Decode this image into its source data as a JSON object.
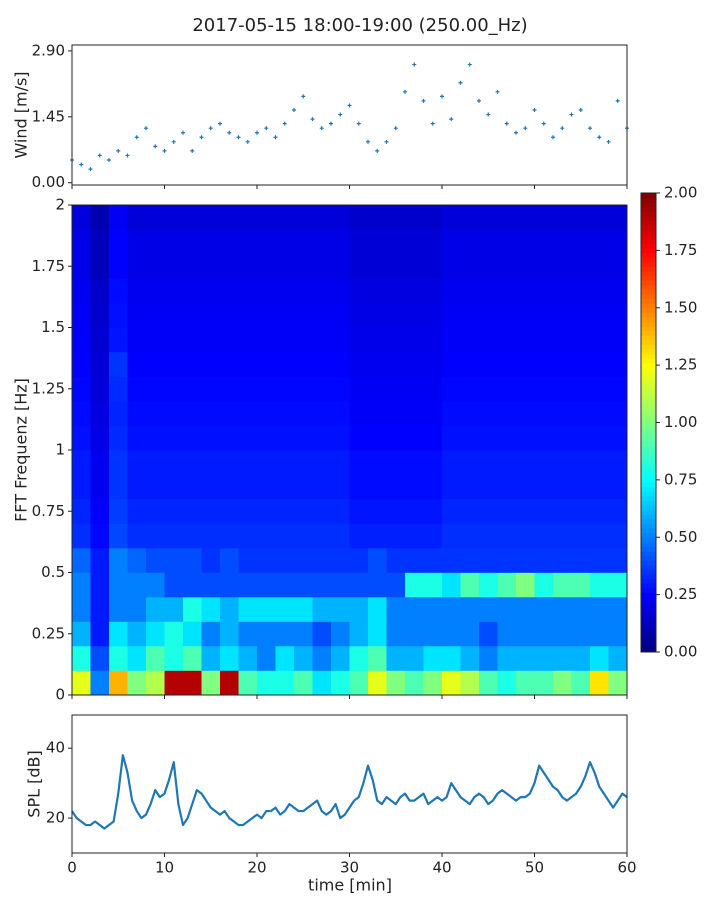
{
  "chart_data": [
    {
      "type": "scatter",
      "title": "2017-05-15 18:00-19:00 (250.00_Hz)",
      "ylabel": "Wind [m/s]",
      "color": "#1f77b4",
      "xlim": [
        0,
        60
      ],
      "ylim": [
        -0.05,
        3.03
      ],
      "yticks": [
        {
          "value": 0,
          "label": "0.00"
        },
        {
          "value": 1.45,
          "label": "1.45"
        },
        {
          "value": 2.9,
          "label": "2.90"
        }
      ],
      "x": [
        0,
        1,
        2,
        3,
        4,
        5,
        6,
        7,
        8,
        9,
        10,
        11,
        12,
        13,
        14,
        15,
        16,
        17,
        18,
        19,
        20,
        21,
        22,
        23,
        24,
        25,
        26,
        27,
        28,
        29,
        30,
        31,
        32,
        33,
        34,
        35,
        36,
        37,
        38,
        39,
        40,
        41,
        42,
        43,
        44,
        45,
        46,
        47,
        48,
        49,
        50,
        51,
        52,
        53,
        54,
        55,
        56,
        57,
        58,
        59,
        60
      ],
      "values": [
        0.5,
        0.4,
        0.3,
        0.6,
        0.5,
        0.7,
        0.6,
        1.0,
        1.2,
        0.8,
        0.7,
        0.9,
        1.1,
        0.7,
        1.0,
        1.2,
        1.3,
        1.1,
        1.0,
        0.9,
        1.1,
        1.2,
        1.0,
        1.3,
        1.6,
        1.9,
        1.4,
        1.2,
        1.3,
        1.5,
        1.7,
        1.3,
        0.9,
        0.7,
        0.9,
        1.2,
        2.0,
        2.6,
        1.8,
        1.3,
        1.9,
        1.4,
        2.2,
        2.6,
        1.8,
        1.5,
        2.0,
        1.3,
        1.1,
        1.2,
        1.6,
        1.3,
        1.0,
        1.2,
        1.5,
        1.6,
        1.2,
        1.0,
        0.9,
        1.8,
        1.2
      ]
    },
    {
      "type": "heatmap",
      "ylabel": "FFT Frequenz [Hz]",
      "colormap": "jet",
      "xlim": [
        0,
        60
      ],
      "ylim": [
        0,
        2
      ],
      "yticks": [
        0,
        0.25,
        0.5,
        0.75,
        1,
        1.25,
        1.5,
        1.75,
        2
      ],
      "zlim": [
        0,
        2
      ],
      "zticks": [
        {
          "value": 0,
          "label": "0.00"
        },
        {
          "value": 0.25,
          "label": "0.25"
        },
        {
          "value": 0.5,
          "label": "0.50"
        },
        {
          "value": 0.75,
          "label": "0.75"
        },
        {
          "value": 1,
          "label": "1.00"
        },
        {
          "value": 1.25,
          "label": "1.25"
        },
        {
          "value": 1.5,
          "label": "1.50"
        },
        {
          "value": 1.75,
          "label": "1.75"
        },
        {
          "value": 2,
          "label": "2.00"
        }
      ],
      "x": [
        1,
        3,
        5,
        7,
        9,
        11,
        13,
        15,
        17,
        19,
        21,
        23,
        25,
        27,
        29,
        31,
        33,
        35,
        37,
        39,
        41,
        43,
        45,
        47,
        49,
        51,
        53,
        55,
        57,
        59
      ],
      "y": [
        0.05,
        0.15,
        0.25,
        0.35,
        0.45,
        0.55,
        0.65,
        0.75,
        0.85,
        0.95,
        1.05,
        1.15,
        1.25,
        1.35,
        1.45,
        1.55,
        1.65,
        1.75,
        1.85,
        1.95
      ],
      "z": [
        [
          1.2,
          0.5,
          1.4,
          1.0,
          1.1,
          1.9,
          1.9,
          1.0,
          1.9,
          0.9,
          0.8,
          0.8,
          0.9,
          0.7,
          0.8,
          0.9,
          1.2,
          1.0,
          0.9,
          1.0,
          1.2,
          1.1,
          0.9,
          0.8,
          0.9,
          0.9,
          1.0,
          0.9,
          1.3,
          1.0
        ],
        [
          0.8,
          0.4,
          0.8,
          0.7,
          0.9,
          0.8,
          0.9,
          0.6,
          0.7,
          0.6,
          0.5,
          0.7,
          0.6,
          0.5,
          0.6,
          0.8,
          0.9,
          0.6,
          0.6,
          0.7,
          0.7,
          0.6,
          0.5,
          0.6,
          0.6,
          0.6,
          0.6,
          0.6,
          0.7,
          0.6
        ],
        [
          0.6,
          0.3,
          0.7,
          0.6,
          0.7,
          0.8,
          0.7,
          0.5,
          0.6,
          0.5,
          0.5,
          0.5,
          0.5,
          0.4,
          0.5,
          0.6,
          0.7,
          0.5,
          0.5,
          0.5,
          0.5,
          0.5,
          0.4,
          0.5,
          0.5,
          0.5,
          0.5,
          0.5,
          0.5,
          0.5
        ],
        [
          0.5,
          0.3,
          0.5,
          0.5,
          0.6,
          0.6,
          0.8,
          0.7,
          0.6,
          0.7,
          0.7,
          0.7,
          0.7,
          0.6,
          0.6,
          0.6,
          0.7,
          0.5,
          0.5,
          0.5,
          0.5,
          0.5,
          0.5,
          0.5,
          0.5,
          0.5,
          0.5,
          0.5,
          0.5,
          0.5
        ],
        [
          0.5,
          0.3,
          0.5,
          0.5,
          0.5,
          0.4,
          0.4,
          0.4,
          0.4,
          0.4,
          0.4,
          0.4,
          0.4,
          0.4,
          0.4,
          0.4,
          0.4,
          0.4,
          0.8,
          0.8,
          0.7,
          0.9,
          0.8,
          0.9,
          1.0,
          0.8,
          0.9,
          0.9,
          0.8,
          0.8
        ],
        [
          0.45,
          0.3,
          0.5,
          0.45,
          0.4,
          0.4,
          0.4,
          0.35,
          0.4,
          0.35,
          0.35,
          0.35,
          0.35,
          0.35,
          0.35,
          0.35,
          0.4,
          0.35,
          0.35,
          0.35,
          0.35,
          0.35,
          0.35,
          0.35,
          0.35,
          0.35,
          0.35,
          0.35,
          0.35,
          0.35
        ],
        [
          0.34,
          0.26,
          0.39,
          0.34,
          0.34,
          0.34,
          0.34,
          0.34,
          0.34,
          0.34,
          0.34,
          0.34,
          0.34,
          0.34,
          0.34,
          0.31,
          0.31,
          0.31,
          0.31,
          0.31,
          0.34,
          0.34,
          0.34,
          0.34,
          0.34,
          0.34,
          0.34,
          0.34,
          0.34,
          0.34
        ],
        [
          0.32,
          0.24,
          0.37,
          0.32,
          0.32,
          0.32,
          0.32,
          0.32,
          0.32,
          0.32,
          0.32,
          0.32,
          0.32,
          0.32,
          0.32,
          0.29,
          0.29,
          0.29,
          0.29,
          0.29,
          0.32,
          0.32,
          0.32,
          0.32,
          0.32,
          0.32,
          0.32,
          0.32,
          0.32,
          0.32
        ],
        [
          0.3,
          0.22,
          0.35,
          0.3,
          0.3,
          0.3,
          0.3,
          0.3,
          0.3,
          0.3,
          0.3,
          0.3,
          0.3,
          0.3,
          0.3,
          0.27,
          0.27,
          0.27,
          0.27,
          0.27,
          0.3,
          0.3,
          0.3,
          0.3,
          0.3,
          0.3,
          0.3,
          0.3,
          0.3,
          0.3
        ],
        [
          0.3,
          0.22,
          0.35,
          0.3,
          0.3,
          0.3,
          0.3,
          0.3,
          0.3,
          0.3,
          0.3,
          0.3,
          0.3,
          0.3,
          0.3,
          0.27,
          0.27,
          0.27,
          0.27,
          0.27,
          0.3,
          0.3,
          0.3,
          0.3,
          0.3,
          0.3,
          0.3,
          0.3,
          0.3,
          0.3
        ],
        [
          0.28,
          0.2,
          0.33,
          0.28,
          0.28,
          0.28,
          0.28,
          0.28,
          0.28,
          0.28,
          0.28,
          0.28,
          0.28,
          0.28,
          0.28,
          0.25,
          0.25,
          0.25,
          0.25,
          0.25,
          0.28,
          0.28,
          0.28,
          0.28,
          0.28,
          0.28,
          0.28,
          0.28,
          0.28,
          0.28
        ],
        [
          0.27,
          0.19,
          0.32,
          0.27,
          0.27,
          0.27,
          0.27,
          0.27,
          0.27,
          0.27,
          0.27,
          0.27,
          0.27,
          0.27,
          0.27,
          0.24,
          0.24,
          0.24,
          0.24,
          0.24,
          0.27,
          0.27,
          0.27,
          0.27,
          0.27,
          0.27,
          0.27,
          0.27,
          0.27,
          0.27
        ],
        [
          0.26,
          0.18,
          0.33,
          0.26,
          0.26,
          0.26,
          0.26,
          0.26,
          0.26,
          0.26,
          0.26,
          0.26,
          0.26,
          0.26,
          0.26,
          0.23,
          0.23,
          0.23,
          0.23,
          0.23,
          0.26,
          0.26,
          0.26,
          0.26,
          0.26,
          0.26,
          0.26,
          0.26,
          0.26,
          0.26
        ],
        [
          0.25,
          0.17,
          0.35,
          0.25,
          0.25,
          0.25,
          0.25,
          0.25,
          0.25,
          0.25,
          0.25,
          0.25,
          0.25,
          0.25,
          0.25,
          0.22,
          0.22,
          0.22,
          0.22,
          0.22,
          0.25,
          0.25,
          0.25,
          0.25,
          0.25,
          0.25,
          0.25,
          0.25,
          0.25,
          0.25
        ],
        [
          0.24,
          0.16,
          0.29,
          0.24,
          0.24,
          0.24,
          0.24,
          0.24,
          0.24,
          0.24,
          0.24,
          0.24,
          0.24,
          0.24,
          0.24,
          0.21,
          0.21,
          0.21,
          0.21,
          0.21,
          0.24,
          0.24,
          0.24,
          0.24,
          0.24,
          0.24,
          0.24,
          0.24,
          0.24,
          0.24
        ],
        [
          0.23,
          0.15,
          0.28,
          0.23,
          0.23,
          0.23,
          0.23,
          0.23,
          0.23,
          0.23,
          0.23,
          0.23,
          0.23,
          0.23,
          0.23,
          0.2,
          0.2,
          0.2,
          0.2,
          0.2,
          0.23,
          0.23,
          0.23,
          0.23,
          0.23,
          0.23,
          0.23,
          0.23,
          0.23,
          0.23
        ],
        [
          0.22,
          0.14,
          0.27,
          0.22,
          0.22,
          0.22,
          0.22,
          0.22,
          0.22,
          0.22,
          0.22,
          0.22,
          0.22,
          0.22,
          0.22,
          0.19,
          0.19,
          0.19,
          0.19,
          0.19,
          0.22,
          0.22,
          0.22,
          0.22,
          0.22,
          0.22,
          0.22,
          0.22,
          0.22,
          0.22
        ],
        [
          0.2,
          0.12,
          0.25,
          0.2,
          0.2,
          0.2,
          0.2,
          0.2,
          0.2,
          0.2,
          0.2,
          0.2,
          0.2,
          0.2,
          0.2,
          0.17,
          0.17,
          0.17,
          0.17,
          0.17,
          0.2,
          0.2,
          0.2,
          0.2,
          0.2,
          0.2,
          0.2,
          0.2,
          0.2,
          0.2
        ],
        [
          0.2,
          0.12,
          0.25,
          0.2,
          0.2,
          0.2,
          0.2,
          0.2,
          0.2,
          0.2,
          0.2,
          0.2,
          0.2,
          0.2,
          0.2,
          0.17,
          0.17,
          0.17,
          0.17,
          0.17,
          0.2,
          0.2,
          0.2,
          0.2,
          0.2,
          0.2,
          0.2,
          0.2,
          0.2,
          0.2
        ],
        [
          0.18,
          0.1,
          0.23,
          0.18,
          0.18,
          0.18,
          0.18,
          0.18,
          0.18,
          0.18,
          0.18,
          0.18,
          0.18,
          0.18,
          0.18,
          0.15,
          0.15,
          0.15,
          0.15,
          0.15,
          0.18,
          0.18,
          0.18,
          0.18,
          0.18,
          0.18,
          0.18,
          0.18,
          0.18,
          0.18
        ]
      ]
    },
    {
      "type": "line",
      "ylabel": "SPL [dB]",
      "xlabel": "time [min]",
      "color": "#1f77b4",
      "xlim": [
        0,
        60
      ],
      "xticks": [
        0,
        10,
        20,
        30,
        40,
        50,
        60
      ],
      "ylim": [
        10,
        49.5
      ],
      "yticks": [
        20,
        40
      ],
      "x": [
        0,
        0.5,
        1,
        1.5,
        2,
        2.5,
        3,
        3.5,
        4,
        4.5,
        5,
        5.5,
        6,
        6.5,
        7,
        7.5,
        8,
        8.5,
        9,
        9.5,
        10,
        10.5,
        11,
        11.5,
        12,
        12.5,
        13,
        13.5,
        14,
        14.5,
        15,
        15.5,
        16,
        16.5,
        17,
        17.5,
        18,
        18.5,
        19,
        19.5,
        20,
        20.5,
        21,
        21.5,
        22,
        22.5,
        23,
        23.5,
        24,
        24.5,
        25,
        25.5,
        26,
        26.5,
        27,
        27.5,
        28,
        28.5,
        29,
        29.5,
        30,
        30.5,
        31,
        31.5,
        32,
        32.5,
        33,
        33.5,
        34,
        34.5,
        35,
        35.5,
        36,
        36.5,
        37,
        37.5,
        38,
        38.5,
        39,
        39.5,
        40,
        40.5,
        41,
        41.5,
        42,
        42.5,
        43,
        43.5,
        44,
        44.5,
        45,
        45.5,
        46,
        46.5,
        47,
        47.5,
        48,
        48.5,
        49,
        49.5,
        50,
        50.5,
        51,
        51.5,
        52,
        52.5,
        53,
        53.5,
        54,
        54.5,
        55,
        55.5,
        56,
        56.5,
        57,
        57.5,
        58,
        58.5,
        59,
        59.5,
        60
      ],
      "values": [
        22,
        20,
        19,
        18,
        18,
        19,
        18,
        17,
        18,
        19,
        27,
        38,
        33,
        25,
        22,
        20,
        21,
        24,
        28,
        26,
        27,
        31,
        36,
        24,
        18,
        20,
        24,
        28,
        27,
        25,
        23,
        22,
        21,
        22,
        20,
        19,
        18,
        18,
        19,
        20,
        21,
        20,
        22,
        22,
        23,
        21,
        22,
        24,
        23,
        22,
        22,
        23,
        24,
        25,
        22,
        21,
        22,
        24,
        20,
        21,
        23,
        25,
        26,
        30,
        35,
        31,
        25,
        24,
        26,
        25,
        24,
        26,
        27,
        25,
        25,
        26,
        27,
        24,
        25,
        26,
        25,
        26,
        30,
        28,
        26,
        25,
        24,
        26,
        27,
        26,
        24,
        25,
        27,
        28,
        27,
        26,
        25,
        26,
        26,
        27,
        30,
        35,
        33,
        31,
        29,
        28,
        26,
        25,
        26,
        27,
        29,
        32,
        36,
        33,
        29,
        27,
        25,
        23,
        25,
        27,
        26
      ]
    }
  ]
}
